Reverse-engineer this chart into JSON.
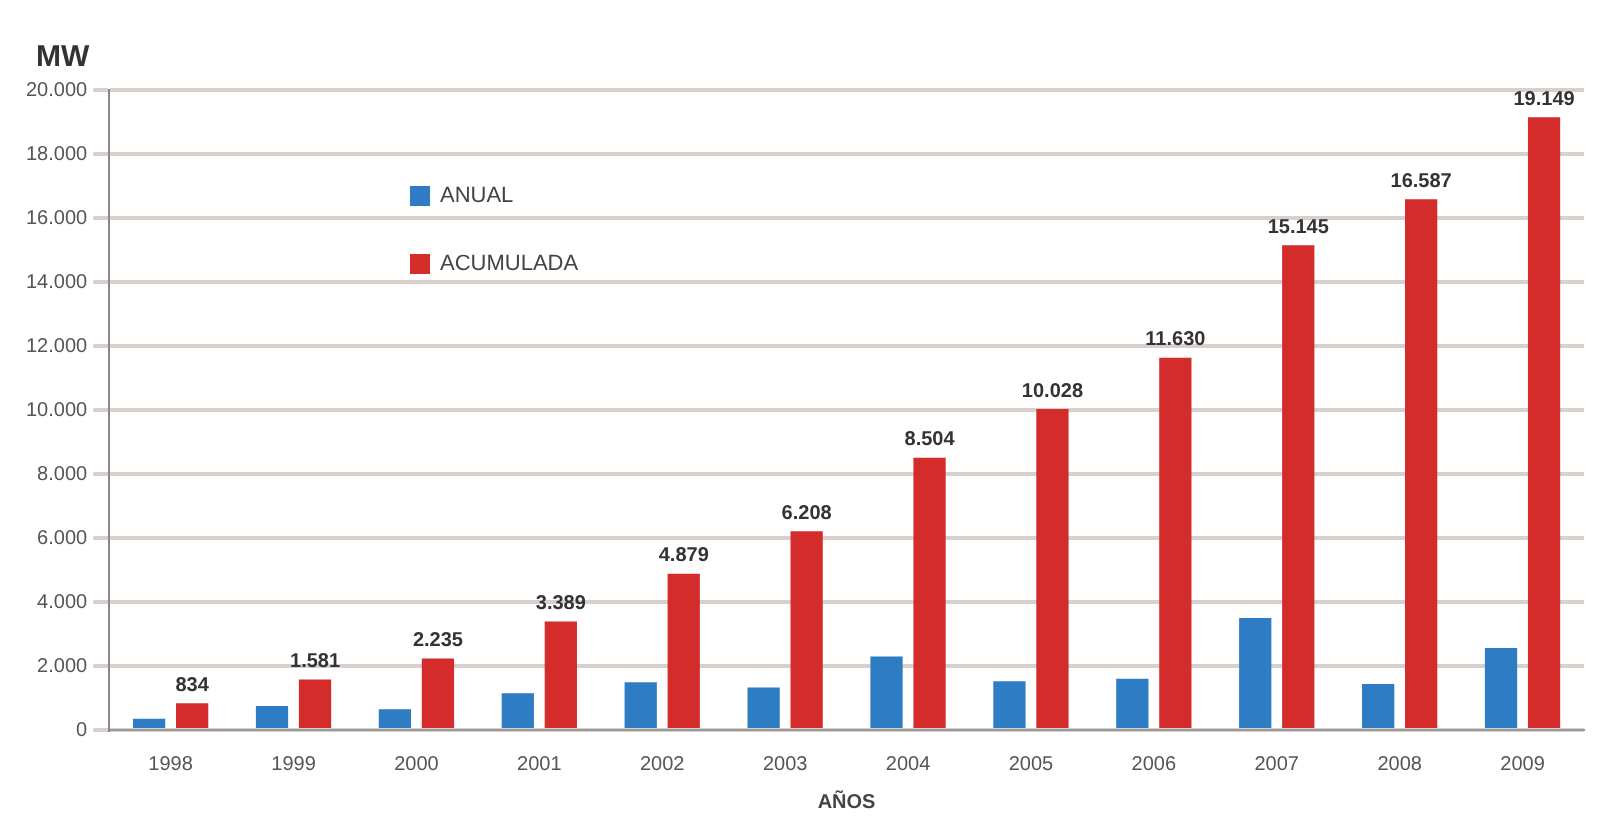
{
  "chart_data": {
    "type": "bar",
    "ylabel": "MW",
    "xlabel": "AÑOS",
    "categories": [
      "1998",
      "1999",
      "2000",
      "2001",
      "2002",
      "2003",
      "2004",
      "2005",
      "2006",
      "2007",
      "2008",
      "2009"
    ],
    "series": [
      {
        "name": "ANUAL",
        "color": "#2e7cc4",
        "values": [
          350,
          750,
          650,
          1150,
          1490,
          1330,
          2300,
          1520,
          1600,
          3500,
          1440,
          2560
        ]
      },
      {
        "name": "ACUMULADA",
        "color": "#d42b2b",
        "values": [
          834,
          1581,
          2235,
          3389,
          4879,
          6208,
          8504,
          10028,
          11630,
          15145,
          16587,
          19149
        ],
        "value_labels": [
          "834",
          "1.581",
          "2.235",
          "3.389",
          "4.879",
          "6.208",
          "8.504",
          "10.028",
          "11.630",
          "15.145",
          "16.587",
          "19.149"
        ]
      }
    ],
    "ylim": [
      0,
      20000
    ],
    "yticks": [
      0,
      {
        "value": 2000,
        "label": "2.000"
      },
      {
        "value": 4000,
        "label": "4.000"
      },
      {
        "value": 6000,
        "label": "6.000"
      },
      {
        "value": 8000,
        "label": "8.000"
      },
      {
        "value": 10000,
        "label": "10.000"
      },
      {
        "value": 12000,
        "label": "12.000"
      },
      {
        "value": 14000,
        "label": "14.000"
      },
      {
        "value": 16000,
        "label": "16.000"
      },
      {
        "value": 18000,
        "label": "18.000"
      },
      {
        "value": 20000,
        "label": "20.000"
      }
    ],
    "grid": "y",
    "legend": "top left"
  }
}
